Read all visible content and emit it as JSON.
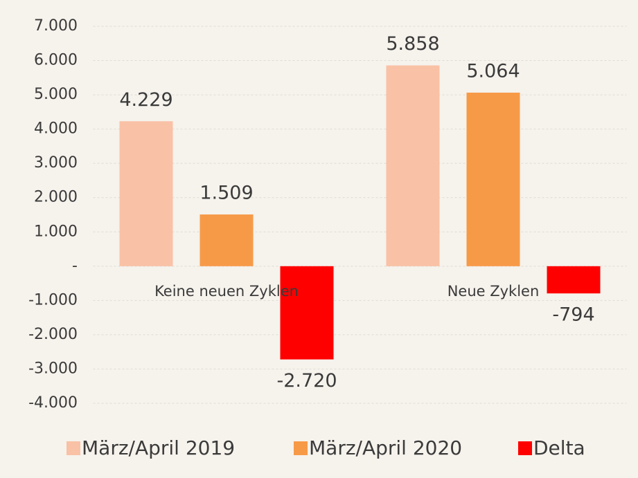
{
  "chart_data": {
    "type": "bar",
    "categories": [
      "Keine neuen Zyklen",
      "Neue Zyklen"
    ],
    "series": [
      {
        "name": "März/April 2019",
        "color": "#f9c1a6",
        "values": [
          4229,
          5858
        ],
        "value_labels": [
          "4.229",
          "5.858"
        ]
      },
      {
        "name": "März/April 2020",
        "color": "#f79a48",
        "values": [
          1509,
          5064
        ],
        "value_labels": [
          "1.509",
          "5.064"
        ]
      },
      {
        "name": "Delta",
        "color": "#ff0000",
        "values": [
          -2720,
          -794
        ],
        "value_labels": [
          "-2.720",
          "-794"
        ]
      }
    ],
    "ylim": [
      -4000,
      7000
    ],
    "yticks": [
      {
        "value": -4000,
        "label": "-4.000"
      },
      {
        "value": -3000,
        "label": "-3.000"
      },
      {
        "value": -2000,
        "label": "-2.000"
      },
      {
        "value": -1000,
        "label": "-1.000"
      },
      {
        "value": 0,
        "label": "-"
      },
      {
        "value": 1000,
        "label": "1.000"
      },
      {
        "value": 2000,
        "label": "2.000"
      },
      {
        "value": 3000,
        "label": "3.000"
      },
      {
        "value": 4000,
        "label": "4.000"
      },
      {
        "value": 5000,
        "label": "5.000"
      },
      {
        "value": 6000,
        "label": "6.000"
      },
      {
        "value": 7000,
        "label": "7.000"
      }
    ],
    "grid": true,
    "legend": "bottom"
  }
}
